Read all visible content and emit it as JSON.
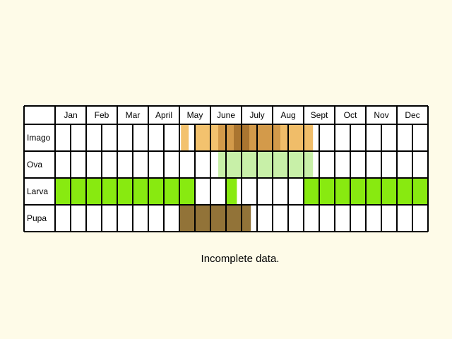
{
  "chart_data": {
    "type": "table",
    "title": "",
    "months": [
      "Jan",
      "Feb",
      "Mar",
      "April",
      "May",
      "June",
      "July",
      "Aug",
      "Sept",
      "Oct",
      "Nov",
      "Dec"
    ],
    "periods_per_month": 2,
    "rows": [
      {
        "label": "Imago",
        "key": "imago",
        "spans": [
          {
            "start": 8.1,
            "end": 8.6,
            "color": "#f3c26e"
          },
          {
            "start": 9.0,
            "end": 10.5,
            "color": "#f3c26e"
          },
          {
            "start": 10.5,
            "end": 11.5,
            "color": "#d39a4a"
          },
          {
            "start": 11.5,
            "end": 12.5,
            "color": "#aa7530"
          },
          {
            "start": 12.5,
            "end": 14.5,
            "color": "#d39a4a"
          },
          {
            "start": 14.5,
            "end": 16.6,
            "color": "#f0bd69"
          }
        ]
      },
      {
        "label": "Ova",
        "key": "ova",
        "spans": [
          {
            "start": 10.5,
            "end": 16.6,
            "color": "#c8f0a8"
          }
        ]
      },
      {
        "label": "Larva",
        "key": "larva",
        "spans": [
          {
            "start": 0,
            "end": 9,
            "color": "#88ea10"
          },
          {
            "start": 11,
            "end": 11.7,
            "color": "#88ea10"
          },
          {
            "start": 16,
            "end": 24,
            "color": "#88ea10"
          }
        ]
      },
      {
        "label": "Pupa",
        "key": "pupa",
        "spans": [
          {
            "start": 8,
            "end": 12.6,
            "color": "#927338"
          }
        ]
      }
    ]
  },
  "note": "Incomplete data."
}
